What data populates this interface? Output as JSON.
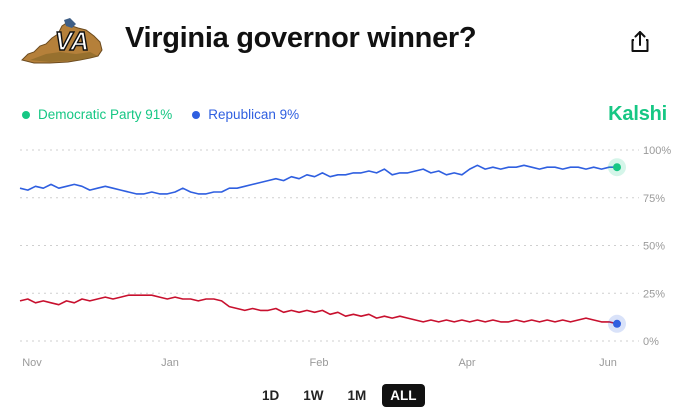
{
  "header": {
    "logo_text": "VA",
    "title": "Virginia governor winner?",
    "share_icon": "share-icon"
  },
  "brand": {
    "name": "Kalshi",
    "color": "#16c784"
  },
  "legend": [
    {
      "label": "Democratic Party 91%",
      "color": "#16c784",
      "text_color": "#16c784"
    },
    {
      "label": "Republican 9%",
      "color": "#2f5fe0",
      "text_color": "#2f5fe0"
    }
  ],
  "range_buttons": [
    {
      "label": "1D",
      "active": false
    },
    {
      "label": "1W",
      "active": false
    },
    {
      "label": "1M",
      "active": false
    },
    {
      "label": "ALL",
      "active": true
    }
  ],
  "chart_data": {
    "type": "line",
    "x_ticks": [
      "Nov",
      "Jan",
      "Feb",
      "Apr",
      "Jun"
    ],
    "y_ticks": [
      "100%",
      "75%",
      "50%",
      "25%",
      "0%"
    ],
    "ylim": [
      0,
      100
    ],
    "grid": true,
    "series": [
      {
        "name": "Democratic Party",
        "color": "#2f5fe0",
        "end_marker_color": "#16c784",
        "values": [
          80,
          79,
          81,
          80,
          82,
          80,
          81,
          82,
          81,
          79,
          80,
          81,
          80,
          79,
          78,
          77,
          77,
          78,
          77,
          77,
          78,
          80,
          78,
          77,
          77,
          78,
          78,
          80,
          80,
          81,
          82,
          83,
          84,
          85,
          84,
          86,
          85,
          87,
          86,
          88,
          86,
          87,
          87,
          88,
          88,
          89,
          88,
          90,
          87,
          88,
          88,
          89,
          90,
          88,
          89,
          87,
          88,
          87,
          90,
          92,
          90,
          91,
          90,
          91,
          91,
          92,
          91,
          90,
          91,
          91,
          90,
          91,
          91,
          90,
          91,
          90,
          91,
          91
        ]
      },
      {
        "name": "Republican",
        "color": "#c8102e",
        "end_marker_color": "#2f5fe0",
        "values": [
          21,
          22,
          20,
          21,
          20,
          19,
          21,
          20,
          22,
          21,
          22,
          23,
          22,
          23,
          24,
          24,
          24,
          24,
          23,
          22,
          23,
          22,
          22,
          21,
          22,
          22,
          21,
          18,
          17,
          16,
          17,
          16,
          16,
          17,
          15,
          16,
          15,
          16,
          15,
          16,
          14,
          15,
          13,
          14,
          13,
          14,
          12,
          13,
          12,
          13,
          12,
          11,
          10,
          11,
          10,
          11,
          10,
          11,
          10,
          11,
          10,
          11,
          10,
          10,
          11,
          10,
          11,
          10,
          11,
          10,
          11,
          10,
          11,
          12,
          11,
          10,
          10,
          9
        ]
      }
    ]
  }
}
